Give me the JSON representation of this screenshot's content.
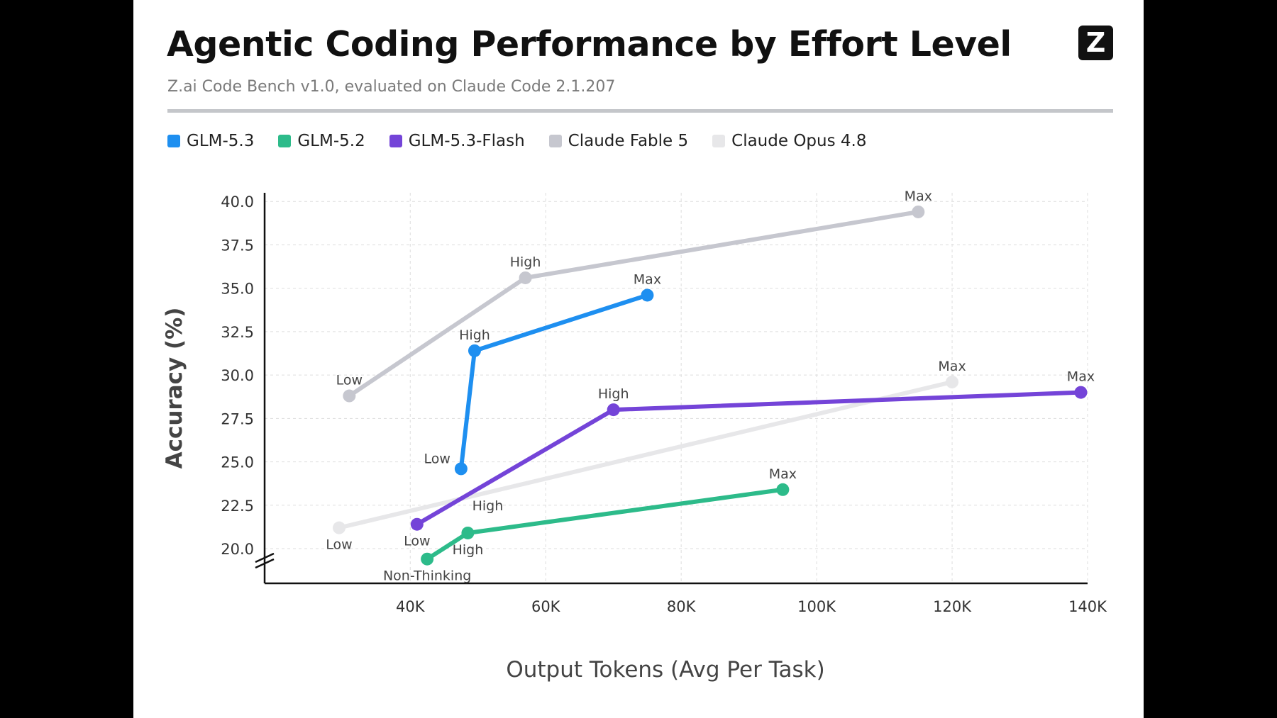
{
  "header": {
    "title": "Agentic Coding Performance by Effort Level",
    "subtitle": "Z.ai Code Bench v1.0, evaluated on Claude Code 2.1.207",
    "logo_text": "Z"
  },
  "colors": {
    "background": "#000000",
    "card": "#ffffff",
    "axis": "#111111",
    "grid": "#dddddd"
  },
  "chart_data": {
    "type": "line",
    "title": "Agentic Coding Performance by Effort Level",
    "subtitle": "Z.ai Code Bench v1.0, evaluated on Claude Code 2.1.207",
    "xlabel": "Output Tokens (Avg Per Task)",
    "ylabel": "Accuracy (%)",
    "xlim": [
      18500,
      140000
    ],
    "ylim": [
      18.0,
      40.5
    ],
    "xticks": [
      40000,
      60000,
      80000,
      100000,
      120000,
      140000
    ],
    "xtick_labels": [
      "40K",
      "60K",
      "80K",
      "100K",
      "120K",
      "140K"
    ],
    "yticks": [
      20.0,
      22.5,
      25.0,
      27.5,
      30.0,
      32.5,
      35.0,
      37.5,
      40.0
    ],
    "ytick_labels": [
      "20.0",
      "22.5",
      "25.0",
      "27.5",
      "30.0",
      "32.5",
      "35.0",
      "37.5",
      "40.0"
    ],
    "grid": true,
    "y_axis_break": true,
    "legend_position": "top-left",
    "series": [
      {
        "name": "Claude Opus 4.8",
        "color": "#e7e7e9",
        "points": [
          {
            "x": 29500,
            "y": 21.2,
            "label": "Low",
            "label_pos": "below"
          },
          {
            "x": 120000,
            "y": 29.6,
            "label": "Max",
            "label_pos": "above"
          }
        ]
      },
      {
        "name": "Claude Fable 5",
        "color": "#c6c7cf",
        "points": [
          {
            "x": 31000,
            "y": 28.8,
            "label": "Low",
            "label_pos": "above"
          },
          {
            "x": 57000,
            "y": 35.6,
            "label": "High",
            "label_pos": "above"
          },
          {
            "x": 115000,
            "y": 39.4,
            "label": "Max",
            "label_pos": "above"
          }
        ]
      },
      {
        "name": "GLM-5.2",
        "color": "#2dbb8a",
        "points": [
          {
            "x": 42500,
            "y": 19.4,
            "label": "Non-Thinking",
            "label_pos": "below"
          },
          {
            "x": 48500,
            "y": 20.9,
            "label": "High",
            "label_pos": "below"
          },
          {
            "x": 95000,
            "y": 23.4,
            "label": "Max",
            "label_pos": "above"
          }
        ]
      },
      {
        "name": "GLM-5.3-Flash",
        "color": "#7444d8",
        "points": [
          {
            "x": 41000,
            "y": 21.4,
            "label": "Low",
            "label_pos": "below"
          },
          {
            "x": 70000,
            "y": 28.0,
            "label": "High",
            "label_pos": "above"
          },
          {
            "x": 139000,
            "y": 29.0,
            "label": "Max",
            "label_pos": "above"
          }
        ]
      },
      {
        "name": "GLM-5.3",
        "color": "#1e8ff0",
        "points": [
          {
            "x": 47500,
            "y": 24.6,
            "label": "Low",
            "label_pos": "left"
          },
          {
            "x": 49500,
            "y": 31.4,
            "label": "High",
            "label_pos": "above"
          },
          {
            "x": 75000,
            "y": 34.6,
            "label": "Max",
            "label_pos": "above"
          }
        ]
      }
    ],
    "annotations": [
      {
        "text": "High",
        "x": 48500,
        "y": 20.9,
        "pos": "above",
        "color": "#444444"
      }
    ]
  },
  "legend": [
    {
      "name": "GLM-5.3",
      "color": "#1e8ff0"
    },
    {
      "name": "GLM-5.2",
      "color": "#2dbb8a"
    },
    {
      "name": "GLM-5.3-Flash",
      "color": "#7444d8"
    },
    {
      "name": "Claude Fable 5",
      "color": "#c6c7cf"
    },
    {
      "name": "Claude Opus 4.8",
      "color": "#e7e7e9"
    }
  ]
}
